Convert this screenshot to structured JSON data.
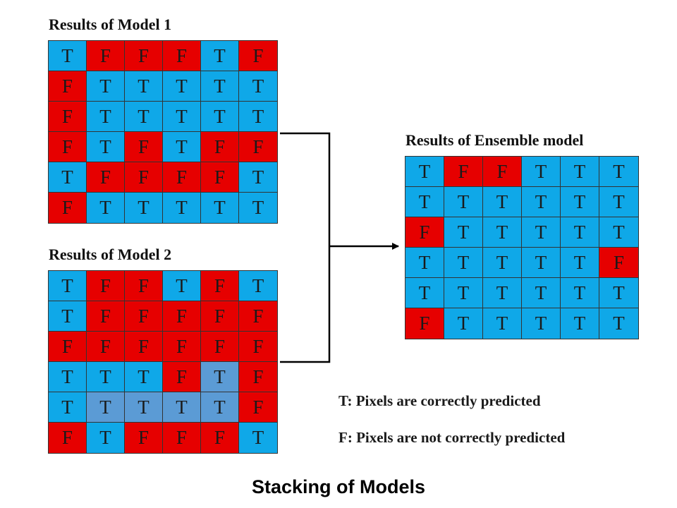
{
  "colors": {
    "true_cell": "#0fa8e8",
    "false_cell": "#e60000",
    "muted_cell": "#5b9bd5"
  },
  "model1": {
    "title": "Results of Model 1",
    "rows": [
      [
        "T",
        "F",
        "F",
        "F",
        "T",
        "F"
      ],
      [
        "F",
        "T",
        "T",
        "T",
        "T",
        "T"
      ],
      [
        "F",
        "T",
        "T",
        "T",
        "T",
        "T"
      ],
      [
        "F",
        "T",
        "F",
        "T",
        "F",
        "F"
      ],
      [
        "T",
        "F",
        "F",
        "F",
        "F",
        "T"
      ],
      [
        "F",
        "T",
        "T",
        "T",
        "T",
        "T"
      ]
    ]
  },
  "model2": {
    "title": "Results of Model 2",
    "rows": [
      [
        "T",
        "F",
        "F",
        "T",
        "F",
        "T"
      ],
      [
        "T",
        "F",
        "F",
        "F",
        "F",
        "F"
      ],
      [
        "F",
        "F",
        "F",
        "F",
        "F",
        "F"
      ],
      [
        "T",
        "T",
        "T",
        "F",
        "T",
        "F"
      ],
      [
        "T",
        "T",
        "T",
        "T",
        "T",
        "F"
      ],
      [
        "F",
        "T",
        "F",
        "F",
        "F",
        "T"
      ]
    ],
    "muted_cells": [
      [
        3,
        4
      ],
      [
        4,
        1
      ],
      [
        4,
        2
      ],
      [
        4,
        3
      ],
      [
        4,
        4
      ]
    ]
  },
  "ensemble": {
    "title": "Results of Ensemble model",
    "rows": [
      [
        "T",
        "F",
        "F",
        "T",
        "T",
        "T"
      ],
      [
        "T",
        "T",
        "T",
        "T",
        "T",
        "T"
      ],
      [
        "F",
        "T",
        "T",
        "T",
        "T",
        "T"
      ],
      [
        "T",
        "T",
        "T",
        "T",
        "T",
        "F"
      ],
      [
        "T",
        "T",
        "T",
        "T",
        "T",
        "T"
      ],
      [
        "F",
        "T",
        "T",
        "T",
        "T",
        "T"
      ]
    ]
  },
  "legend": {
    "t_text": "T: Pixels are correctly predicted",
    "f_text": "F: Pixels are not correctly predicted"
  },
  "caption": "Stacking of Models"
}
